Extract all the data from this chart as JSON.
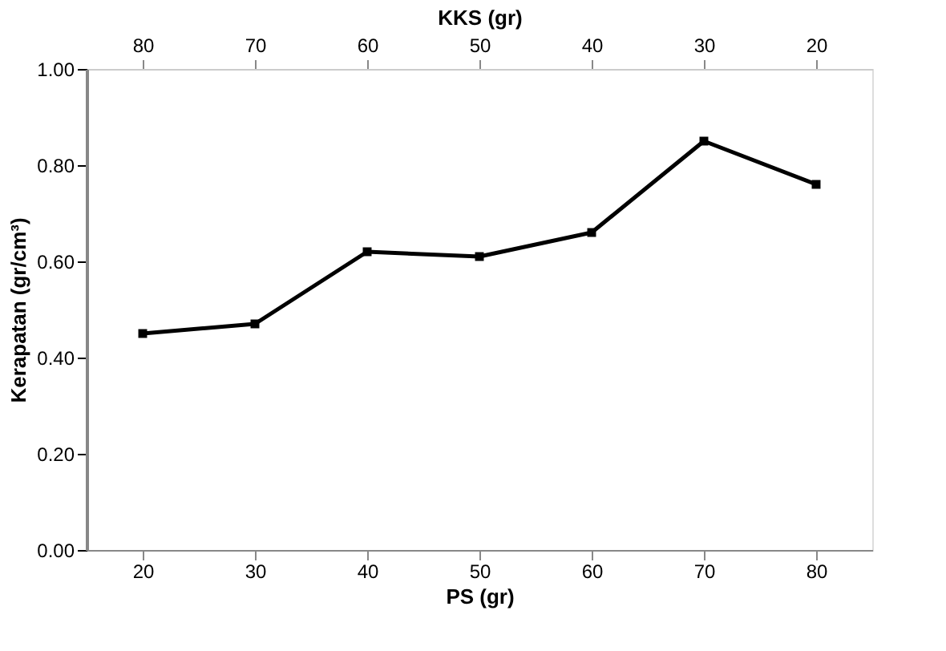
{
  "chart_data": {
    "type": "line",
    "xlabel": "PS (gr)",
    "x2label": "KKS (gr)",
    "ylabel": "Kerapatan (gr/cm³)",
    "x": [
      20,
      30,
      40,
      50,
      60,
      70,
      80
    ],
    "series": [
      {
        "color": "#000000",
        "values": [
          0.45,
          0.47,
          0.62,
          0.61,
          0.66,
          0.85,
          0.76
        ]
      }
    ],
    "xlim": [
      15,
      85
    ],
    "xticks": [
      20,
      30,
      40,
      50,
      60,
      70,
      80
    ],
    "x2lim": [
      85,
      15
    ],
    "x2ticks": [
      80,
      70,
      60,
      50,
      40,
      30,
      20
    ],
    "ylim": [
      0,
      1
    ],
    "yticks": [
      {
        "value": 0,
        "label": "0.00"
      },
      {
        "value": 0.2,
        "label": "0.20"
      },
      {
        "value": 0.4,
        "label": "0.40"
      },
      {
        "value": 0.6,
        "label": "0.60"
      },
      {
        "value": 0.8,
        "label": "0.80"
      },
      {
        "value": 1,
        "label": "1.00"
      }
    ],
    "grid": false,
    "marker": "square",
    "line_style": "solid"
  }
}
